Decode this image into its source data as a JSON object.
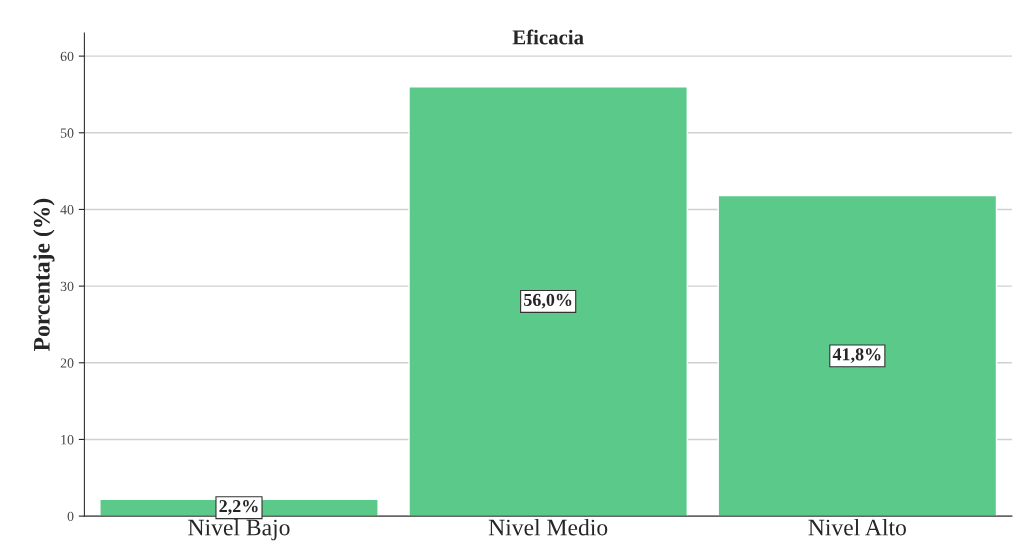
{
  "chart_data": {
    "type": "bar",
    "title": "Eficacia",
    "ylabel": "Porcentaje (%)",
    "categories": [
      "Nivel Bajo",
      "Nivel Medio",
      "Nivel Alto"
    ],
    "values": [
      2.2,
      56.0,
      41.8
    ],
    "value_labels": [
      "2,2%",
      "56,0%",
      "41,8%"
    ],
    "color": "#5bc98a",
    "ylim": [
      0,
      63
    ],
    "yticks": [
      0,
      10,
      20,
      30,
      40,
      50,
      60
    ],
    "grid": "y"
  }
}
